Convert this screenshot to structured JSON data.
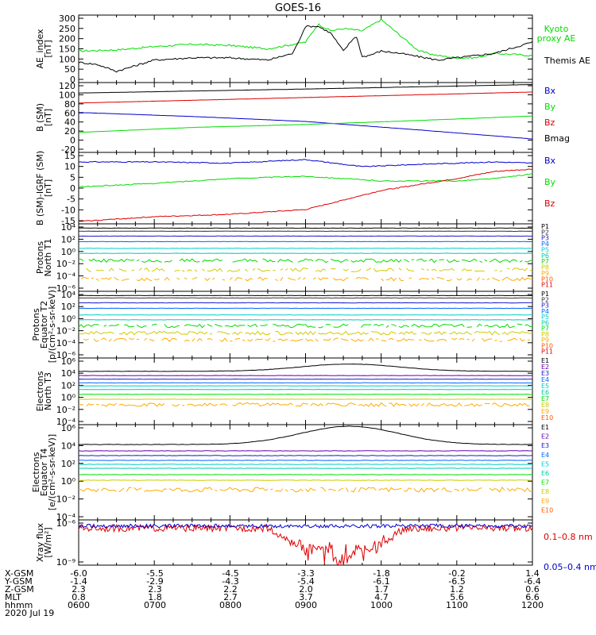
{
  "title": "GOES-16",
  "colors": {
    "black": "#000000",
    "green": "#00dd00",
    "blue": "#0000cc",
    "red": "#dd0000",
    "P": [
      "#000000",
      "#333333",
      "#1a1acc",
      "#0066ff",
      "#00cccc",
      "#00ccaa",
      "#00dd00",
      "#cccc00",
      "#ffaa00",
      "#ff5500",
      "#dd0000"
    ],
    "E": [
      "#000000",
      "#6600aa",
      "#1a1acc",
      "#0066ff",
      "#00cccc",
      "#00ccaa",
      "#00dd00",
      "#cccc00",
      "#ffaa00",
      "#ff5500",
      "#dd0000"
    ]
  },
  "chart_data": [
    {
      "type": "line",
      "id": "ae",
      "ylabel": "AE_index\n[nT]",
      "yticks": [
        "300",
        "250",
        "200",
        "150",
        "100",
        "50",
        "0"
      ],
      "legend": [
        "Kyoto\nproxy AE",
        "Themis AE"
      ],
      "series": [
        {
          "name": "Kyoto proxy AE",
          "color": "green",
          "x": [
            "06:00",
            "06:30",
            "07:00",
            "07:30",
            "08:00",
            "08:30",
            "08:50",
            "09:00",
            "09:10",
            "09:20",
            "09:30",
            "09:45",
            "10:00",
            "10:15",
            "10:30",
            "10:45",
            "11:00",
            "11:15",
            "11:30",
            "11:45",
            "12:00"
          ],
          "y": [
            140,
            145,
            160,
            170,
            165,
            150,
            170,
            180,
            260,
            230,
            240,
            230,
            280,
            210,
            140,
            120,
            110,
            110,
            130,
            125,
            120
          ]
        },
        {
          "name": "Themis AE",
          "color": "black",
          "x": [
            "06:00",
            "06:15",
            "06:30",
            "07:00",
            "07:30",
            "08:00",
            "08:30",
            "08:50",
            "09:00",
            "09:10",
            "09:20",
            "09:30",
            "09:40",
            "09:45",
            "09:50",
            "10:00",
            "10:15",
            "10:30",
            "10:45",
            "11:00",
            "11:30",
            "12:00"
          ],
          "y": [
            90,
            80,
            50,
            100,
            110,
            110,
            100,
            130,
            250,
            250,
            220,
            140,
            210,
            115,
            120,
            140,
            130,
            115,
            100,
            110,
            130,
            180
          ]
        }
      ]
    },
    {
      "type": "line",
      "id": "bsm",
      "ylabel": "B (SM)\n[nT]",
      "yticks": [
        "120",
        "100",
        "80",
        "60",
        "40",
        "20",
        "0",
        "-20"
      ],
      "legend": [
        "Bx",
        "By",
        "Bz",
        "Bmag"
      ],
      "series": [
        {
          "name": "Bmag",
          "color": "black",
          "x": [
            "06:00",
            "09:00",
            "12:00"
          ],
          "y": [
            99,
            107,
            116
          ]
        },
        {
          "name": "Bz",
          "color": "red",
          "x": [
            "06:00",
            "09:00",
            "12:00"
          ],
          "y": [
            79,
            90,
            101
          ]
        },
        {
          "name": "Bx",
          "color": "blue",
          "x": [
            "06:00",
            "07:30",
            "09:00",
            "10:30",
            "12:00"
          ],
          "y": [
            60,
            52,
            42,
            25,
            7
          ]
        },
        {
          "name": "By",
          "color": "green",
          "x": [
            "06:00",
            "07:30",
            "09:00",
            "10:30",
            "12:00"
          ],
          "y": [
            20,
            30,
            36,
            44,
            53
          ]
        }
      ]
    },
    {
      "type": "line",
      "id": "bigrf",
      "ylabel": "B (SM)-IGRF (SM)\n[nT]",
      "yticks": [
        "15",
        "10",
        "5",
        "0",
        "-5",
        "-10",
        "-15"
      ],
      "legend": [
        "Bx",
        "By",
        "Bz"
      ],
      "series": [
        {
          "name": "Bx",
          "color": "blue",
          "x": [
            "06:00",
            "07:00",
            "08:00",
            "09:00",
            "09:45",
            "10:30",
            "11:30",
            "12:00"
          ],
          "y": [
            11,
            11,
            10.5,
            12,
            9,
            10,
            11,
            10.5
          ]
        },
        {
          "name": "By",
          "color": "green",
          "x": [
            "06:00",
            "07:00",
            "08:00",
            "09:00",
            "10:00",
            "11:00",
            "11:30",
            "12:00"
          ],
          "y": [
            0.5,
            2,
            4,
            5,
            3,
            3,
            4,
            6
          ]
        },
        {
          "name": "Bz",
          "color": "red",
          "x": [
            "06:00",
            "07:00",
            "08:00",
            "09:00",
            "09:30",
            "10:00",
            "11:00",
            "11:30",
            "12:00"
          ],
          "y": [
            -14,
            -12,
            -11,
            -9,
            -5,
            -1,
            4,
            7,
            8
          ]
        }
      ]
    },
    {
      "type": "line",
      "id": "protons_north",
      "log": true,
      "ylabel": "Protons\nNorth T1",
      "yticks": [
        "10⁴",
        "10²",
        "10⁰",
        "10⁻²",
        "10⁻⁴",
        "10⁻⁶"
      ],
      "legend": [
        "P1",
        "P2",
        "P3",
        "P4",
        "P5",
        "P6",
        "P7",
        "P8",
        "P9",
        "P10",
        "P11"
      ],
      "levels": [
        3.8,
        3.3,
        2.5,
        1.6,
        0.5,
        -0.3,
        -1.5,
        -3,
        -4.5,
        null,
        null
      ]
    },
    {
      "type": "line",
      "id": "protons_equator",
      "log": true,
      "ylabel": "Protons\nEquator T2\n[p/(cm²-s-sr-keV)]",
      "yticks": [
        "10⁴",
        "10²",
        "10⁰",
        "10⁻²",
        "10⁻⁴",
        "10⁻⁶"
      ],
      "legend": [
        "P1",
        "P2",
        "P3",
        "P4",
        "P5",
        "P6",
        "P7",
        "P8",
        "P9",
        "P10",
        "P11"
      ],
      "levels": [
        3.8,
        3.4,
        2.6,
        1.7,
        0.6,
        -0.2,
        -1.2,
        -2.4,
        -3.5,
        null,
        null
      ]
    },
    {
      "type": "line",
      "id": "electrons_north",
      "log": true,
      "ylabel": "Electrons\nNorth T3",
      "yticks": [
        "10⁶",
        "10⁴",
        "10²",
        "10⁰",
        "10⁻²",
        "10⁻⁴"
      ],
      "legend": [
        "E1",
        "E2",
        "E3",
        "E4",
        "E5",
        "E6",
        "E7",
        "E8",
        "E9",
        "E10"
      ],
      "levels": [
        4.3,
        3.6,
        3.0,
        2.4,
        1.9,
        1.3,
        0.5,
        -0.3,
        -1.2,
        null
      ]
    },
    {
      "type": "line",
      "id": "electrons_equator",
      "log": true,
      "ylabel": "Electrons\nEquator T4\n[e/(cm²-s-sr-keV)]",
      "yticks": [
        "10⁶",
        "10⁴",
        "10²",
        "10⁰",
        "10⁻²",
        "10⁻⁴"
      ],
      "legend": [
        "E1",
        "E2",
        "E3",
        "E4",
        "E5",
        "E6",
        "E7",
        "E8",
        "E9",
        "E10"
      ],
      "levels": [
        4.5,
        3.7,
        3.1,
        2.5,
        2.0,
        1.5,
        0.7,
        0.0,
        -1.2,
        null
      ]
    },
    {
      "type": "line",
      "id": "xray",
      "log": true,
      "ylabel": "Xray flux\n[W/m²]",
      "yticks": [
        "10⁻⁶",
        "10⁻⁹"
      ],
      "legend": [
        "0.1–0.8 nm",
        "0.05–0.4 nm"
      ]
    }
  ],
  "xaxis": {
    "rows": [
      {
        "label": "X-GSM",
        "values": [
          "-6.0",
          "-5.5",
          "-4.5",
          "-3.3",
          "-1.8",
          "-0.2",
          "1.4"
        ]
      },
      {
        "label": "Y-GSM",
        "values": [
          "-1.4",
          "-2.9",
          "-4.3",
          "-5.4",
          "-6.1",
          "-6.5",
          "-6.4"
        ]
      },
      {
        "label": "Z-GSM",
        "values": [
          "2.3",
          "2.3",
          "2.2",
          "2.0",
          "1.7",
          "1.2",
          "0.6"
        ]
      },
      {
        "label": "MLT",
        "values": [
          "0.8",
          "1.8",
          "2.7",
          "3.7",
          "4.7",
          "5.6",
          "6.6"
        ]
      },
      {
        "label": "hhmm",
        "values": [
          "0600",
          "0700",
          "0800",
          "0900",
          "1000",
          "1100",
          "1200"
        ]
      }
    ],
    "date": "2020 Jul 19"
  }
}
